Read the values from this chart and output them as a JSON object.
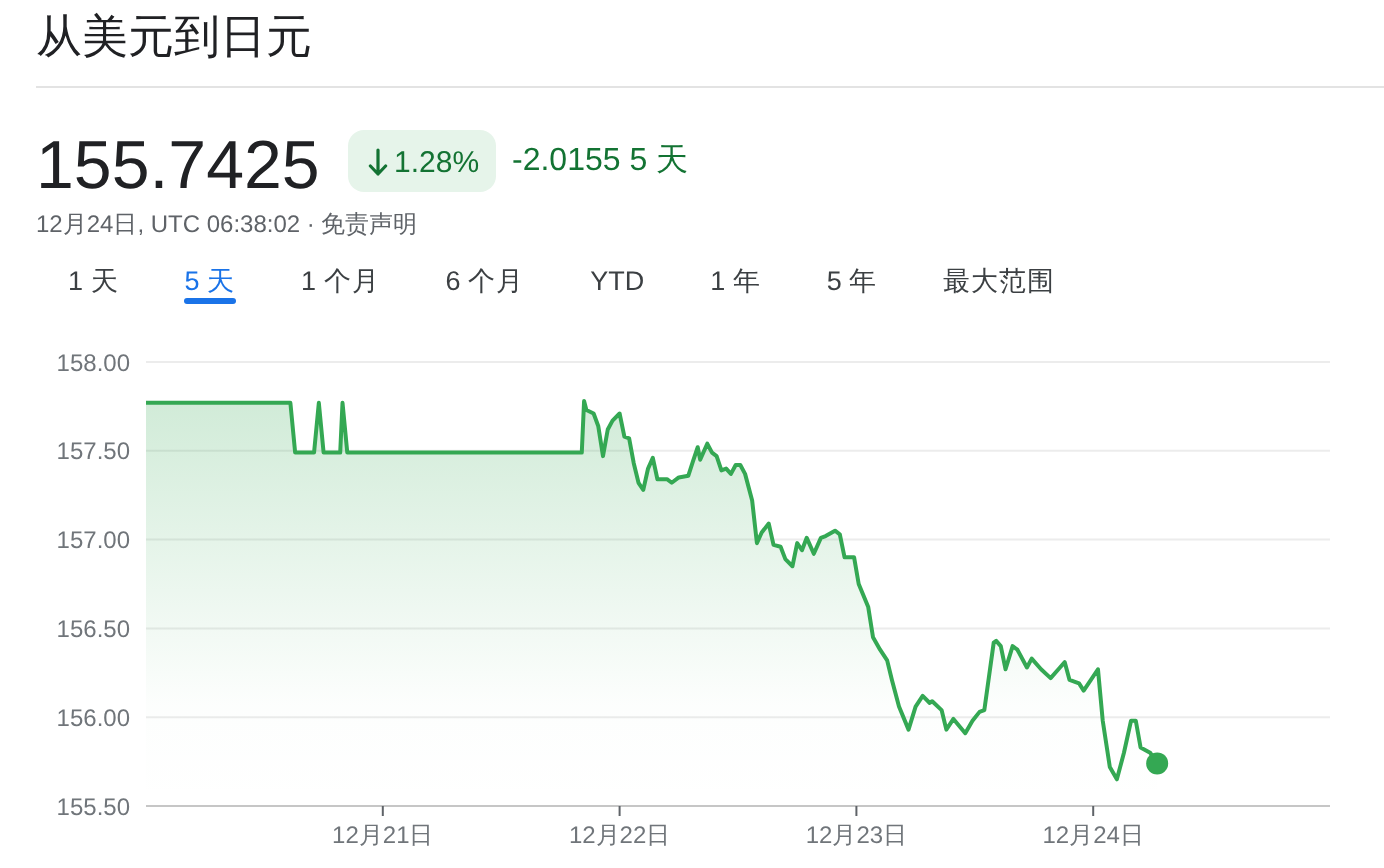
{
  "chart_data": {
    "type": "area",
    "title": "从美元到日元",
    "annotations": [
      "155.7425",
      "1.28%",
      "-2.0155 5 天",
      "12月24日, UTC 06:38:02 · 免责声明",
      "1 天",
      "5 天",
      "1 个月",
      "6 个月",
      "YTD",
      "1 年",
      "5 年",
      "最大范围"
    ],
    "xlim": [
      "--12-20",
      "--12-25"
    ],
    "xticks": [
      {
        "value": "--12-21",
        "label": "12月21日"
      },
      {
        "value": "--12-22",
        "label": "12月22日"
      },
      {
        "value": "--12-23",
        "label": "12月23日"
      },
      {
        "value": "--12-24",
        "label": "12月24日"
      }
    ],
    "ylim": [
      155.5,
      158.0
    ],
    "yticks": [
      {
        "value": 155.5,
        "label": "155.50"
      },
      {
        "value": 156.0,
        "label": "156.00"
      },
      {
        "value": 156.5,
        "label": "156.50"
      },
      {
        "value": 157.0,
        "label": "157.00"
      },
      {
        "value": 157.5,
        "label": "157.50"
      },
      {
        "value": 158.0,
        "label": "158.00"
      }
    ],
    "grid": "y",
    "series": [
      {
        "color": "#34a853",
        "x": [
          "--12-20T00:00",
          "--12-20T14:38",
          "--12-20T15:07",
          "--12-20T17:02",
          "--12-20T17:31",
          "--12-20T18:00",
          "--12-20T19:41",
          "--12-20T19:55",
          "--12-20T20:24",
          "--12-21T20:10",
          "--12-21T20:24",
          "--12-21T20:38",
          "--12-21T21:22",
          "--12-21T21:50",
          "--12-21T22:19",
          "--12-21T22:48",
          "--12-21T23:17",
          "--12-22T00:00",
          "--12-22T00:29",
          "--12-22T00:58",
          "--12-22T01:26",
          "--12-22T01:55",
          "--12-22T02:24",
          "--12-22T02:53",
          "--12-22T03:22",
          "--12-22T03:50",
          "--12-22T04:48",
          "--12-22T05:17",
          "--12-22T06:00",
          "--12-22T06:58",
          "--12-22T07:26",
          "--12-22T07:55",
          "--12-22T08:10",
          "--12-22T08:53",
          "--12-22T09:22",
          "--12-22T09:50",
          "--12-22T10:19",
          "--12-22T10:48",
          "--12-22T11:17",
          "--12-22T11:46",
          "--12-22T12:14",
          "--12-22T12:43",
          "--12-22T13:26",
          "--12-22T13:55",
          "--12-22T14:24",
          "--12-22T15:07",
          "--12-22T15:36",
          "--12-22T16:19",
          "--12-22T16:48",
          "--12-22T17:31",
          "--12-22T18:00",
          "--12-22T18:29",
          "--12-22T18:58",
          "--12-22T19:41",
          "--12-22T20:24",
          "--12-22T20:53",
          "--12-22T21:50",
          "--12-22T22:19",
          "--12-22T22:48",
          "--12-22T23:46",
          "--12-23T00:14",
          "--12-23T01:12",
          "--12-23T01:41",
          "--12-23T02:24",
          "--12-23T03:07",
          "--12-23T03:36",
          "--12-23T04:19",
          "--12-23T05:17",
          "--12-23T06:00",
          "--12-23T06:43",
          "--12-23T07:26",
          "--12-23T07:41",
          "--12-23T08:38",
          "--12-23T09:07",
          "--12-23T09:50",
          "--12-23T11:02",
          "--12-23T11:46",
          "--12-23T12:29",
          "--12-23T12:58",
          "--12-23T13:55",
          "--12-23T14:10",
          "--12-23T14:38",
          "--12-23T15:07",
          "--12-23T15:50",
          "--12-23T16:19",
          "--12-23T17:17",
          "--12-23T17:46",
          "--12-23T18:43",
          "--12-23T19:41",
          "--12-23T20:38",
          "--12-23T21:07",
          "--12-23T21:36",
          "--12-23T22:34",
          "--12-23T23:02",
          "--12-23T23:46",
          "--12-24T00:29",
          "--12-24T00:58",
          "--12-24T01:41",
          "--12-24T02:24",
          "--12-24T03:07",
          "--12-24T03:50",
          "--12-24T04:19",
          "--12-24T04:48",
          "--12-24T05:46",
          "--12-24T06:29"
        ],
        "values": [
          157.77,
          157.77,
          157.49,
          157.49,
          157.77,
          157.49,
          157.49,
          157.77,
          157.49,
          157.49,
          157.78,
          157.73,
          157.71,
          157.64,
          157.47,
          157.62,
          157.67,
          157.71,
          157.58,
          157.57,
          157.43,
          157.32,
          157.28,
          157.4,
          157.46,
          157.34,
          157.34,
          157.32,
          157.35,
          157.36,
          157.44,
          157.52,
          157.45,
          157.54,
          157.49,
          157.47,
          157.39,
          157.4,
          157.37,
          157.42,
          157.42,
          157.37,
          157.22,
          156.98,
          157.04,
          157.09,
          156.97,
          156.96,
          156.89,
          156.85,
          156.98,
          156.94,
          157.01,
          156.92,
          157.01,
          157.02,
          157.05,
          157.03,
          156.9,
          156.9,
          156.75,
          156.62,
          156.45,
          156.38,
          156.32,
          156.21,
          156.06,
          155.93,
          156.06,
          156.12,
          156.08,
          156.09,
          156.04,
          155.93,
          155.99,
          155.91,
          155.98,
          156.03,
          156.04,
          156.42,
          156.43,
          156.4,
          156.27,
          156.4,
          156.38,
          156.28,
          156.33,
          156.27,
          156.22,
          156.28,
          156.31,
          156.21,
          156.19,
          156.15,
          156.21,
          156.27,
          155.98,
          155.72,
          155.65,
          155.8,
          155.98,
          155.98,
          155.83,
          155.8,
          155.74
        ]
      },
      {
        "type": "scatter",
        "color": "#34a853",
        "x": [
          "--12-24T06:29"
        ],
        "values": [
          155.74
        ]
      }
    ]
  }
}
